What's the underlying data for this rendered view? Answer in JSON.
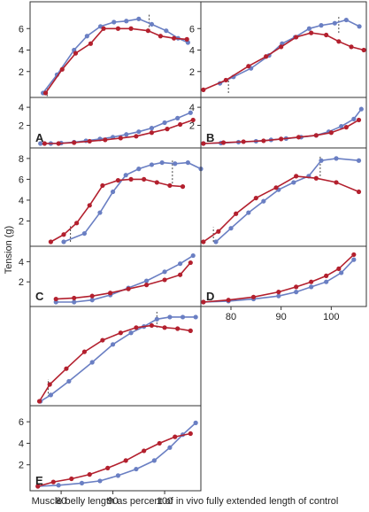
{
  "figure": {
    "y_axis_label": "Tension (g)",
    "x_axis_label": "Muscle belly length as percent of in vivo fully extended length of control",
    "colors": {
      "blue": "#6a7fc3",
      "red": "#b3202e",
      "frame": "#333333",
      "dash": "#444444"
    }
  },
  "chart_data": [
    {
      "type": "line",
      "panel": "A",
      "part": "active",
      "x_range": [
        74,
        107
      ],
      "ylim": [
        0,
        8
      ],
      "y_ticks": [
        2,
        4,
        6
      ],
      "series": [
        {
          "color": "blue",
          "x": [
            76.5,
            79.2,
            82.5,
            85.0,
            87.6,
            90.2,
            92.6,
            95.0,
            97.5,
            100.3,
            102.6,
            104.5
          ],
          "y": [
            0.0,
            1.7,
            4.0,
            5.3,
            6.2,
            6.6,
            6.7,
            6.9,
            6.4,
            5.8,
            5.1,
            4.7
          ]
        },
        {
          "color": "red",
          "x": [
            77.0,
            80.2,
            82.8,
            85.7,
            88.2,
            91.0,
            93.5,
            96.8,
            99.2,
            101.8,
            104.3
          ],
          "y": [
            0.0,
            2.2,
            3.7,
            4.6,
            6.0,
            6.0,
            6.0,
            5.8,
            5.3,
            5.1,
            5.0
          ]
        }
      ],
      "dashed_markers": [
        {
          "x": 77.3,
          "y": [
            -0.3,
            0.5
          ]
        },
        {
          "x": 97.0,
          "y": [
            5.8,
            7.4
          ]
        }
      ]
    },
    {
      "type": "line",
      "panel": "A",
      "part": "passive",
      "x_range": [
        74,
        107
      ],
      "ylim": [
        0,
        4.5
      ],
      "y_ticks": [
        2,
        4
      ],
      "letter": "A",
      "series": [
        {
          "color": "blue",
          "x": [
            76.0,
            78.0,
            80.0,
            82.5,
            84.8,
            87.5,
            90.0,
            92.6,
            95.0,
            97.5,
            100.0,
            102.5,
            105.0
          ],
          "y": [
            0.0,
            0.0,
            0.05,
            0.15,
            0.3,
            0.5,
            0.7,
            1.0,
            1.3,
            1.7,
            2.3,
            2.8,
            3.4
          ]
        },
        {
          "color": "red",
          "x": [
            76.8,
            79.5,
            82.5,
            85.5,
            88.5,
            91.5,
            94.5,
            97.5,
            100.5,
            103.0,
            105.5
          ],
          "y": [
            0.0,
            0.0,
            0.1,
            0.25,
            0.4,
            0.6,
            0.8,
            1.2,
            1.6,
            2.1,
            2.6
          ]
        }
      ]
    },
    {
      "type": "line",
      "panel": "B",
      "part": "active",
      "x_range": [
        74,
        107
      ],
      "ylim": [
        0,
        8
      ],
      "y_ticks": [
        2,
        4,
        6
      ],
      "series": [
        {
          "color": "blue",
          "x": [
            77.8,
            80.5,
            84.0,
            87.6,
            90.2,
            92.8,
            95.6,
            98.0,
            100.7,
            103.0,
            105.6
          ],
          "y": [
            0.9,
            1.5,
            2.3,
            3.5,
            4.6,
            5.2,
            6.0,
            6.3,
            6.5,
            6.8,
            6.2
          ]
        },
        {
          "color": "red",
          "x": [
            74.5,
            79.0,
            83.5,
            87.0,
            90.0,
            93.0,
            96.0,
            99.0,
            101.5,
            104.0,
            106.5
          ],
          "y": [
            0.3,
            1.2,
            2.5,
            3.4,
            4.3,
            5.2,
            5.6,
            5.4,
            4.8,
            4.3,
            4.0
          ]
        }
      ],
      "dashed_markers": [
        {
          "x": 79.5,
          "y": [
            0.0,
            1.2
          ]
        },
        {
          "x": 101.5,
          "y": [
            5.6,
            7.1
          ]
        }
      ]
    },
    {
      "type": "line",
      "panel": "B",
      "part": "passive",
      "x_range": [
        74,
        107
      ],
      "ylim": [
        0,
        4.5
      ],
      "y_ticks": [
        2,
        4
      ],
      "letter": "B",
      "series": [
        {
          "color": "blue",
          "x": [
            74.5,
            78.0,
            81.5,
            85.0,
            88.0,
            91.0,
            94.0,
            97.0,
            99.5,
            102.0,
            104.5,
            106.0
          ],
          "y": [
            0.0,
            0.05,
            0.15,
            0.25,
            0.4,
            0.55,
            0.7,
            0.9,
            1.3,
            1.9,
            2.7,
            3.8
          ]
        },
        {
          "color": "red",
          "x": [
            74.5,
            78.5,
            82.5,
            86.5,
            90.0,
            93.5,
            97.0,
            100.0,
            103.0,
            105.5
          ],
          "y": [
            0.0,
            0.1,
            0.2,
            0.3,
            0.5,
            0.7,
            0.9,
            1.2,
            1.8,
            2.6
          ]
        }
      ]
    },
    {
      "type": "line",
      "panel": "C",
      "part": "active",
      "x_range": [
        74,
        107
      ],
      "ylim": [
        0,
        8.5
      ],
      "y_ticks": [
        2,
        4,
        6,
        8
      ],
      "series": [
        {
          "color": "blue",
          "x": [
            80.5,
            84.5,
            87.5,
            90.0,
            92.5,
            95.0,
            97.5,
            99.5,
            102.0,
            104.5,
            107.0
          ],
          "y": [
            0.0,
            0.8,
            2.8,
            4.8,
            6.4,
            7.0,
            7.4,
            7.6,
            7.5,
            7.6,
            7.0
          ]
        },
        {
          "color": "red",
          "x": [
            78.0,
            80.5,
            83.0,
            85.5,
            88.0,
            91.0,
            93.5,
            96.0,
            98.5,
            101.0,
            103.5
          ],
          "y": [
            0.0,
            0.7,
            1.8,
            3.5,
            5.4,
            5.9,
            6.0,
            6.0,
            5.7,
            5.4,
            5.3
          ]
        }
      ],
      "dashed_markers": [
        {
          "x": 81.8,
          "y": [
            0.0,
            1.5
          ]
        },
        {
          "x": 101.5,
          "y": [
            5.6,
            7.8
          ]
        }
      ]
    },
    {
      "type": "line",
      "panel": "C",
      "part": "passive",
      "x_range": [
        74,
        107
      ],
      "ylim": [
        0,
        5
      ],
      "y_ticks": [
        2,
        4
      ],
      "letter": "C",
      "series": [
        {
          "color": "blue",
          "x": [
            79.0,
            82.5,
            86.0,
            89.5,
            93.0,
            96.5,
            100.0,
            103.0,
            105.5
          ],
          "y": [
            0.0,
            0.0,
            0.2,
            0.7,
            1.4,
            2.1,
            3.0,
            3.8,
            4.6
          ]
        },
        {
          "color": "red",
          "x": [
            79.0,
            82.5,
            86.0,
            89.5,
            93.0,
            96.5,
            100.0,
            103.0,
            105.0
          ],
          "y": [
            0.3,
            0.4,
            0.6,
            0.9,
            1.3,
            1.7,
            2.2,
            2.7,
            3.9
          ]
        }
      ]
    },
    {
      "type": "line",
      "panel": "D",
      "part": "active",
      "x_range": [
        74,
        107
      ],
      "ylim": [
        0,
        8.5
      ],
      "y_ticks": [],
      "series": [
        {
          "color": "blue",
          "x": [
            77.0,
            80.0,
            83.5,
            86.5,
            89.5,
            92.5,
            95.5,
            98.0,
            101.0,
            105.5
          ],
          "y": [
            0.0,
            1.3,
            2.8,
            3.9,
            5.0,
            5.7,
            6.3,
            7.8,
            8.0,
            7.8
          ]
        },
        {
          "color": "red",
          "x": [
            74.5,
            77.5,
            81.0,
            85.0,
            89.0,
            93.0,
            97.0,
            101.0,
            105.5
          ],
          "y": [
            0.0,
            1.0,
            2.7,
            4.2,
            5.2,
            6.3,
            6.1,
            5.7,
            4.8
          ]
        }
      ],
      "dashed_markers": [
        {
          "x": 76.5,
          "y": [
            0.0,
            1.4
          ]
        },
        {
          "x": 97.8,
          "y": [
            6.3,
            8.3
          ]
        }
      ]
    },
    {
      "type": "line",
      "panel": "D",
      "part": "passive",
      "x_range": [
        74,
        107
      ],
      "ylim": [
        0,
        5
      ],
      "y_ticks": [],
      "letter": "D",
      "x_ticks": [
        80,
        90,
        100
      ],
      "series": [
        {
          "color": "blue",
          "x": [
            74.5,
            79.5,
            84.5,
            89.5,
            93.0,
            96.0,
            99.0,
            102.0,
            104.5
          ],
          "y": [
            0.0,
            0.1,
            0.3,
            0.6,
            1.0,
            1.5,
            2.0,
            2.9,
            4.2
          ]
        },
        {
          "color": "red",
          "x": [
            74.5,
            79.5,
            84.5,
            89.5,
            93.0,
            96.0,
            99.0,
            101.5,
            104.5
          ],
          "y": [
            0.0,
            0.2,
            0.5,
            1.0,
            1.5,
            2.0,
            2.6,
            3.3,
            4.7
          ]
        }
      ]
    },
    {
      "type": "line",
      "panel": "E",
      "part": "active",
      "x_range": [
        74,
        107
      ],
      "ylim": [
        0,
        8.5
      ],
      "y_ticks": [],
      "series": [
        {
          "color": "blue",
          "x": [
            76.0,
            78.0,
            81.5,
            86.0,
            90.0,
            93.5,
            96.0,
            98.5,
            101.0,
            103.5,
            106.0
          ],
          "y": [
            0.0,
            0.6,
            1.9,
            3.7,
            5.4,
            6.5,
            7.1,
            7.8,
            8.0,
            8.0,
            8.0
          ]
        },
        {
          "color": "red",
          "x": [
            75.8,
            77.8,
            81.0,
            84.5,
            88.0,
            91.5,
            94.5,
            97.5,
            100.0,
            102.5,
            105.0
          ],
          "y": [
            0.0,
            1.6,
            3.1,
            4.7,
            5.8,
            6.5,
            7.0,
            7.2,
            7.0,
            6.9,
            6.7
          ]
        }
      ],
      "dashed_markers": [
        {
          "x": 77.5,
          "y": [
            0.4,
            2.1
          ]
        },
        {
          "x": 98.5,
          "y": [
            7.0,
            8.5
          ]
        }
      ]
    },
    {
      "type": "line",
      "panel": "E",
      "part": "passive",
      "x_range": [
        74,
        107
      ],
      "ylim": [
        0,
        7
      ],
      "y_ticks": [
        2,
        4,
        6
      ],
      "letter": "E",
      "x_ticks": [
        80,
        90,
        100
      ],
      "series": [
        {
          "color": "blue",
          "x": [
            75.5,
            79.5,
            84.0,
            87.5,
            91.0,
            94.5,
            98.0,
            101.0,
            103.5,
            106.0
          ],
          "y": [
            0.0,
            0.1,
            0.3,
            0.5,
            1.0,
            1.6,
            2.4,
            3.6,
            4.8,
            5.9
          ]
        },
        {
          "color": "red",
          "x": [
            75.5,
            78.5,
            82.0,
            85.5,
            89.0,
            92.5,
            96.0,
            99.0,
            102.0,
            105.0
          ],
          "y": [
            0.0,
            0.4,
            0.7,
            1.1,
            1.7,
            2.4,
            3.3,
            4.0,
            4.6,
            4.9
          ]
        }
      ]
    }
  ]
}
